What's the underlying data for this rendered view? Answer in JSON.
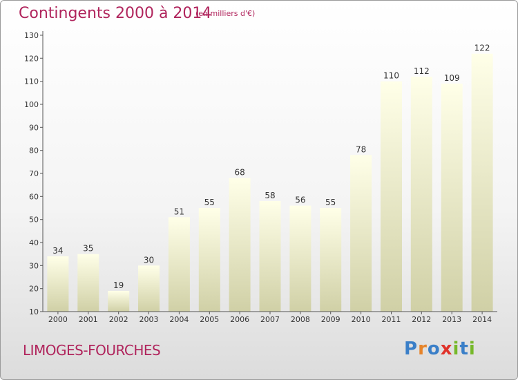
{
  "header": {
    "title": "Contingents 2000 à 2014",
    "subtitle": "(en milliers d'€)"
  },
  "footer": {
    "place": "LIMOGES-FOURCHES",
    "logo": [
      "P",
      "r",
      "o",
      "x",
      "i",
      "t",
      "i"
    ]
  },
  "colors": {
    "title": "#b0245c",
    "bar_top": "#ffffe8",
    "bar_bottom": "#d0d0a6",
    "axis": "#555555",
    "logo": [
      "#3a7fc8",
      "#e6842a",
      "#3a7fc8",
      "#e0322a",
      "#76b82a",
      "#3a7fc8",
      "#76b82a"
    ]
  },
  "chart_data": {
    "type": "bar",
    "title": "Contingents 2000 à 2014",
    "subtitle": "(en milliers d'€)",
    "categories": [
      "2000",
      "2001",
      "2002",
      "2003",
      "2004",
      "2005",
      "2006",
      "2007",
      "2008",
      "2009",
      "2010",
      "2011",
      "2012",
      "2013",
      "2014"
    ],
    "values": [
      34,
      35,
      19,
      30,
      51,
      55,
      68,
      58,
      56,
      55,
      78,
      110,
      112,
      109,
      122
    ],
    "ylim": [
      10,
      130
    ],
    "yticks": [
      10,
      20,
      30,
      40,
      50,
      60,
      70,
      80,
      90,
      100,
      110,
      120,
      130
    ],
    "xlabel": "",
    "ylabel": "",
    "grid": false,
    "data_labels": true
  }
}
